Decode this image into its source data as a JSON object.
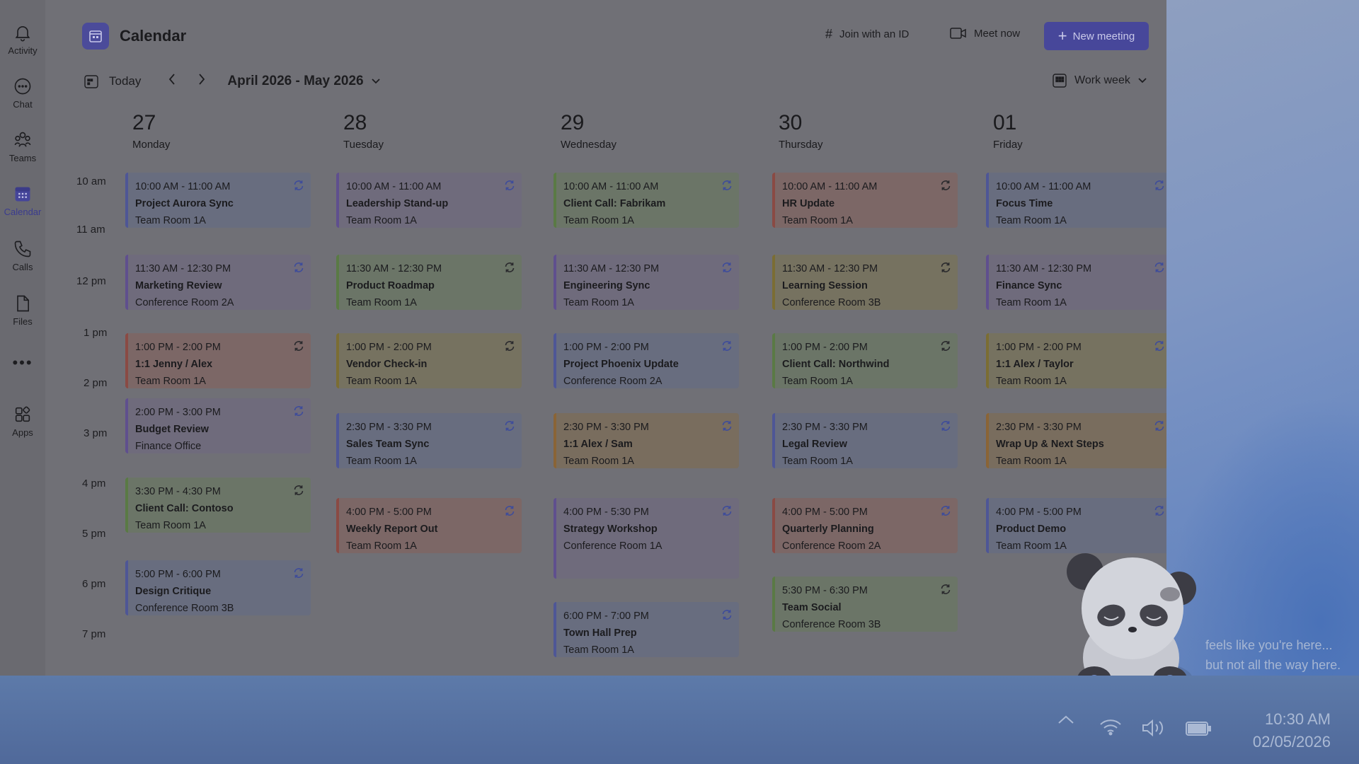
{
  "rail": {
    "items": [
      {
        "label": "Activity"
      },
      {
        "label": "Chat"
      },
      {
        "label": "Teams"
      },
      {
        "label": "Calendar"
      },
      {
        "label": "Calls"
      },
      {
        "label": "Files"
      },
      {
        "label": "Apps"
      }
    ],
    "more": "•••"
  },
  "header": {
    "title": "Calendar",
    "join_label": "Join with an ID",
    "meet_label": "Meet now",
    "new_meeting_label": "New meeting"
  },
  "nav": {
    "today_label": "Today",
    "range_label": "April 2026 - May 2026",
    "view_label": "Work week"
  },
  "days": [
    {
      "num": "27",
      "name": "Monday"
    },
    {
      "num": "28",
      "name": "Tuesday"
    },
    {
      "num": "29",
      "name": "Wednesday"
    },
    {
      "num": "30",
      "name": "Thursday"
    },
    {
      "num": "01",
      "name": "Friday"
    }
  ],
  "time_labels": [
    "10 am",
    "11 am",
    "12 pm",
    "1 pm",
    "2 pm",
    "3 pm",
    "4 pm",
    "5 pm",
    "6 pm",
    "7 pm"
  ],
  "events": {
    "d0": [
      {
        "time": "10:00 AM - 11:00 AM",
        "title": "Project Aurora Sync",
        "room": "Team Room 1A",
        "color": "blue"
      },
      {
        "time": "11:30 AM - 12:30 PM",
        "title": "Marketing Review",
        "room": "Conference Room 2A",
        "color": "purple"
      },
      {
        "time": "1:00 PM - 2:00 PM",
        "title": "1:1 Jenny / Alex",
        "room": "Team Room 1A",
        "color": "red"
      },
      {
        "time": "2:00 PM - 3:00 PM",
        "title": "Budget Review",
        "room": "Finance Office",
        "color": "purple"
      },
      {
        "time": "3:30 PM - 4:30 PM",
        "title": "Client Call: Contoso",
        "room": "Team Room 1A",
        "color": "green"
      },
      {
        "time": "5:00 PM - 6:00 PM",
        "title": "Design Critique",
        "room": "Conference Room 3B",
        "color": "blue"
      }
    ],
    "d1": [
      {
        "time": "10:00 AM - 11:00 AM",
        "title": "Leadership Stand-up",
        "room": "Team Room 1A",
        "color": "purple"
      },
      {
        "time": "11:30 AM - 12:30 PM",
        "title": "Product Roadmap",
        "room": "Team Room 1A",
        "color": "green"
      },
      {
        "time": "1:00 PM - 2:00 PM",
        "title": "Vendor Check-in",
        "room": "Team Room 1A",
        "color": "yellow"
      },
      {
        "time": "2:30 PM - 3:30 PM",
        "title": "Sales Team Sync",
        "room": "Team Room 1A",
        "color": "blue"
      },
      {
        "time": "4:00 PM - 5:00 PM",
        "title": "Weekly Report Out",
        "room": "Team Room 1A",
        "color": "red"
      }
    ],
    "d2": [
      {
        "time": "10:00 AM - 11:00 AM",
        "title": "Client Call: Fabrikam",
        "room": "Team Room 1A",
        "color": "green"
      },
      {
        "time": "11:30 AM - 12:30 PM",
        "title": "Engineering Sync",
        "room": "Team Room 1A",
        "color": "purple"
      },
      {
        "time": "1:00 PM - 2:00 PM",
        "title": "Project Phoenix Update",
        "room": "Conference Room 2A",
        "color": "blue"
      },
      {
        "time": "2:30 PM - 3:30 PM",
        "title": "1:1 Alex / Sam",
        "room": "Team Room 1A",
        "color": "orange"
      },
      {
        "time": "4:00 PM - 5:30 PM",
        "title": "Strategy Workshop",
        "room": "Conference Room 1A",
        "color": "purple"
      },
      {
        "time": "6:00 PM - 7:00 PM",
        "title": "Town Hall Prep",
        "room": "Team Room 1A",
        "color": "blue"
      }
    ],
    "d3": [
      {
        "time": "10:00 AM - 11:00 AM",
        "title": "HR Update",
        "room": "Team Room 1A",
        "color": "red"
      },
      {
        "time": "11:30 AM - 12:30 PM",
        "title": "Learning Session",
        "room": "Conference Room 3B",
        "color": "yellow"
      },
      {
        "time": "1:00 PM - 2:00 PM",
        "title": "Client Call: Northwind",
        "room": "Team Room 1A",
        "color": "green"
      },
      {
        "time": "2:30 PM - 3:30 PM",
        "title": "Legal Review",
        "room": "Team Room 1A",
        "color": "blue"
      },
      {
        "time": "4:00 PM - 5:00 PM",
        "title": "Quarterly Planning",
        "room": "Conference Room 2A",
        "color": "red"
      },
      {
        "time": "5:30 PM - 6:30 PM",
        "title": "Team Social",
        "room": "Conference Room 3B",
        "color": "green"
      }
    ],
    "d4": [
      {
        "time": "10:00 AM - 11:00 AM",
        "title": "Focus Time",
        "room": "Team Room 1A",
        "color": "blue"
      },
      {
        "time": "11:30 AM - 12:30 PM",
        "title": "Finance Sync",
        "room": "Team Room 1A",
        "color": "purple"
      },
      {
        "time": "1:00 PM - 2:00 PM",
        "title": "1:1 Alex / Taylor",
        "room": "Team Room 1A",
        "color": "yellow"
      },
      {
        "time": "2:30 PM - 3:30 PM",
        "title": "Wrap Up & Next Steps",
        "room": "Team Room 1A",
        "color": "orange"
      },
      {
        "time": "4:00 PM - 5:00 PM",
        "title": "Product Demo",
        "room": "Team Room 1A",
        "color": "blue"
      }
    ]
  },
  "desktop": {
    "quote_line1": "feels like you're here...",
    "quote_line2": "but not all the way here."
  },
  "taskbar": {
    "time": "10:30 AM",
    "date": "02/05/2026"
  }
}
